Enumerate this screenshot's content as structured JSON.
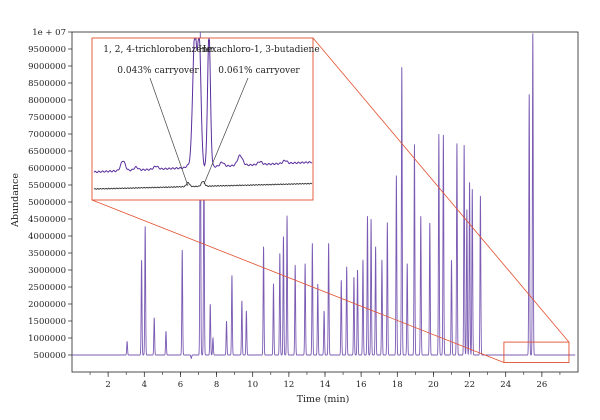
{
  "chart_data": {
    "type": "line",
    "title": "",
    "xlabel": "Time (min)",
    "ylabel": "Abundance",
    "xlim": [
      0,
      28
    ],
    "ylim": [
      0,
      10000000
    ],
    "x_ticks": [
      2,
      4,
      6,
      8,
      10,
      12,
      14,
      16,
      18,
      20,
      22,
      24,
      26
    ],
    "y_ticks": [
      500000,
      1000000,
      1500000,
      2000000,
      2500000,
      3000000,
      3500000,
      4000000,
      4500000,
      5000000,
      5500000,
      6000000,
      6500000,
      7000000,
      7500000,
      8000000,
      8500000,
      9000000,
      9500000,
      10000000
    ],
    "y_tick_labels": [
      "500000",
      "1000000",
      "1500000",
      "2000000",
      "2500000",
      "3000000",
      "3500000",
      "4000000",
      "4500000",
      "5000000",
      "5500000",
      "6000000",
      "6500000",
      "7000000",
      "7500000",
      "8000000",
      "8500000",
      "9000000",
      "9500000",
      "1e + 07"
    ],
    "grid": false,
    "baseline": 500000,
    "line_color": "#7b5bb3",
    "inset_line_color": "#5a2f9c",
    "blank_line_color": "#333333",
    "highlight_color": "#e2502f",
    "series": [
      {
        "peaks": [
          [
            3.05,
            900000
          ],
          [
            3.85,
            3300000
          ],
          [
            4.05,
            4300000
          ],
          [
            4.55,
            1600000
          ],
          [
            5.2,
            1200000
          ],
          [
            6.1,
            3600000
          ],
          [
            6.6,
            400000
          ],
          [
            7.1,
            10000000
          ],
          [
            7.3,
            6600000
          ],
          [
            7.65,
            2000000
          ],
          [
            7.8,
            1000000
          ],
          [
            8.55,
            1500000
          ],
          [
            8.85,
            2850000
          ],
          [
            9.4,
            2100000
          ],
          [
            9.65,
            1800000
          ],
          [
            10.6,
            3700000
          ],
          [
            11.15,
            2600000
          ],
          [
            11.5,
            3500000
          ],
          [
            11.7,
            4000000
          ],
          [
            11.9,
            4600000
          ],
          [
            12.35,
            3150000
          ],
          [
            12.9,
            3200000
          ],
          [
            13.3,
            3800000
          ],
          [
            13.6,
            2600000
          ],
          [
            13.95,
            1800000
          ],
          [
            14.2,
            3800000
          ],
          [
            14.9,
            2700000
          ],
          [
            15.2,
            3100000
          ],
          [
            15.6,
            2800000
          ],
          [
            15.8,
            3000000
          ],
          [
            16.1,
            3300000
          ],
          [
            16.35,
            4600000
          ],
          [
            16.55,
            4500000
          ],
          [
            16.8,
            3700000
          ],
          [
            17.15,
            3300000
          ],
          [
            17.45,
            4400000
          ],
          [
            17.95,
            5800000
          ],
          [
            18.25,
            9000000
          ],
          [
            18.55,
            3200000
          ],
          [
            18.95,
            6700000
          ],
          [
            19.3,
            4600000
          ],
          [
            19.8,
            4400000
          ],
          [
            20.3,
            7000000
          ],
          [
            20.55,
            7000000
          ],
          [
            21.0,
            3300000
          ],
          [
            21.3,
            6750000
          ],
          [
            21.7,
            6700000
          ],
          [
            21.85,
            4800000
          ],
          [
            22.0,
            5600000
          ],
          [
            22.15,
            5400000
          ],
          [
            22.6,
            5200000
          ],
          [
            25.3,
            8200000
          ],
          [
            25.5,
            10000000
          ]
        ]
      }
    ],
    "inset": {
      "region_x": [
        23.9,
        27.5
      ],
      "region_y": [
        280000,
        880000
      ],
      "annotations": [
        {
          "label": "1, 2, 4-trichlorobenzene",
          "carryover": "0.043% carryover"
        },
        {
          "label": "Hexachloro-1, 3-butadiene",
          "carryover": "0.061% carryover"
        }
      ]
    }
  }
}
